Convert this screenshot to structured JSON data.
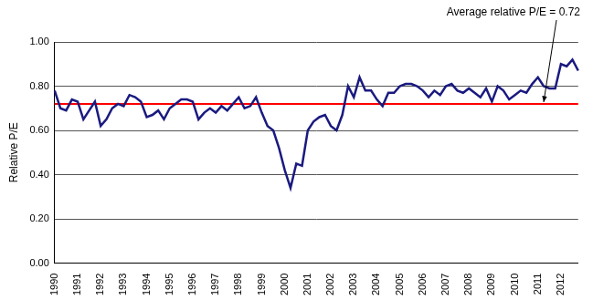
{
  "chart_data": {
    "type": "line",
    "y_label": "Relative P/E",
    "categories": [
      "1990",
      null,
      null,
      null,
      "1991",
      null,
      null,
      null,
      "1992",
      null,
      null,
      null,
      "1993",
      null,
      null,
      null,
      "1994",
      null,
      null,
      null,
      "1995",
      null,
      null,
      null,
      "1996",
      null,
      null,
      null,
      "1997",
      null,
      null,
      null,
      "1998",
      null,
      null,
      null,
      "1999",
      null,
      null,
      null,
      "2000",
      null,
      null,
      null,
      "2001",
      null,
      null,
      null,
      "2002",
      null,
      null,
      null,
      "2003",
      null,
      null,
      null,
      "2004",
      null,
      null,
      null,
      "2005",
      null,
      null,
      null,
      "2006",
      null,
      null,
      null,
      "2007",
      null,
      null,
      null,
      "2008",
      null,
      null,
      null,
      "2009",
      null,
      null,
      null,
      "2010",
      null,
      null,
      null,
      "2011",
      null,
      null,
      null,
      "2012",
      null,
      null,
      null
    ],
    "values": [
      0.78,
      0.7,
      0.69,
      0.74,
      0.73,
      0.65,
      0.69,
      0.73,
      0.62,
      0.65,
      0.7,
      0.72,
      0.71,
      0.76,
      0.75,
      0.73,
      0.66,
      0.67,
      0.69,
      0.65,
      0.7,
      0.72,
      0.74,
      0.74,
      0.73,
      0.65,
      0.68,
      0.7,
      0.68,
      0.71,
      0.69,
      0.72,
      0.75,
      0.7,
      0.71,
      0.75,
      0.68,
      0.62,
      0.6,
      0.52,
      0.42,
      0.34,
      0.45,
      0.44,
      0.6,
      0.64,
      0.66,
      0.67,
      0.62,
      0.6,
      0.67,
      0.8,
      0.75,
      0.84,
      0.78,
      0.78,
      0.74,
      0.71,
      0.77,
      0.77,
      0.8,
      0.81,
      0.81,
      0.8,
      0.78,
      0.75,
      0.78,
      0.76,
      0.8,
      0.81,
      0.78,
      0.77,
      0.79,
      0.77,
      0.75,
      0.79,
      0.73,
      0.8,
      0.78,
      0.74,
      0.76,
      0.78,
      0.77,
      0.81,
      0.84,
      0.8,
      0.79,
      0.79,
      0.9,
      0.89,
      0.92,
      0.87
    ],
    "color": "#1a1a80",
    "average": {
      "value": 0.72,
      "color": "#ff0000",
      "label": "Average relative P/E = 0.72"
    },
    "ylim": [
      0,
      1
    ],
    "yticks": [
      {
        "value": 0,
        "label": "0.00"
      },
      {
        "value": 0.2,
        "label": "0.20"
      },
      {
        "value": 0.4,
        "label": "0.40"
      },
      {
        "value": 0.6,
        "label": "0.60"
      },
      {
        "value": 0.8,
        "label": "0.80"
      },
      {
        "value": 1,
        "label": "1.00"
      }
    ],
    "grid": true
  }
}
